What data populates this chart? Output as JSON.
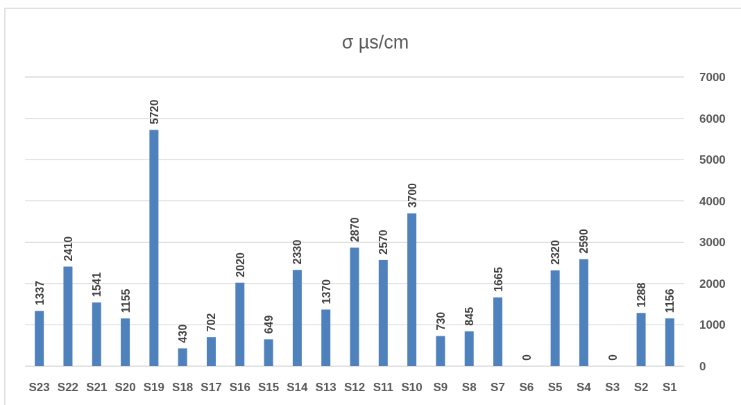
{
  "chart_data": {
    "type": "bar",
    "title": "σ µs/cm",
    "categories": [
      "S23",
      "S22",
      "S21",
      "S20",
      "S19",
      "S18",
      "S17",
      "S16",
      "S15",
      "S14",
      "S13",
      "S12",
      "S11",
      "S10",
      "S9",
      "S8",
      "S7",
      "S6",
      "S5",
      "S4",
      "S3",
      "S2",
      "S1"
    ],
    "values": [
      1337,
      2410,
      1541,
      1155,
      5720,
      430,
      702,
      2020,
      649,
      2330,
      1370,
      2870,
      2570,
      3700,
      730,
      845,
      1665,
      0,
      2320,
      2590,
      0,
      1288,
      1156
    ],
    "color": "#4f81bd",
    "ylim": [
      0,
      7000
    ],
    "yticks": [
      0,
      1000,
      2000,
      3000,
      4000,
      5000,
      6000,
      7000
    ],
    "grid": "y",
    "data_labels": true
  }
}
